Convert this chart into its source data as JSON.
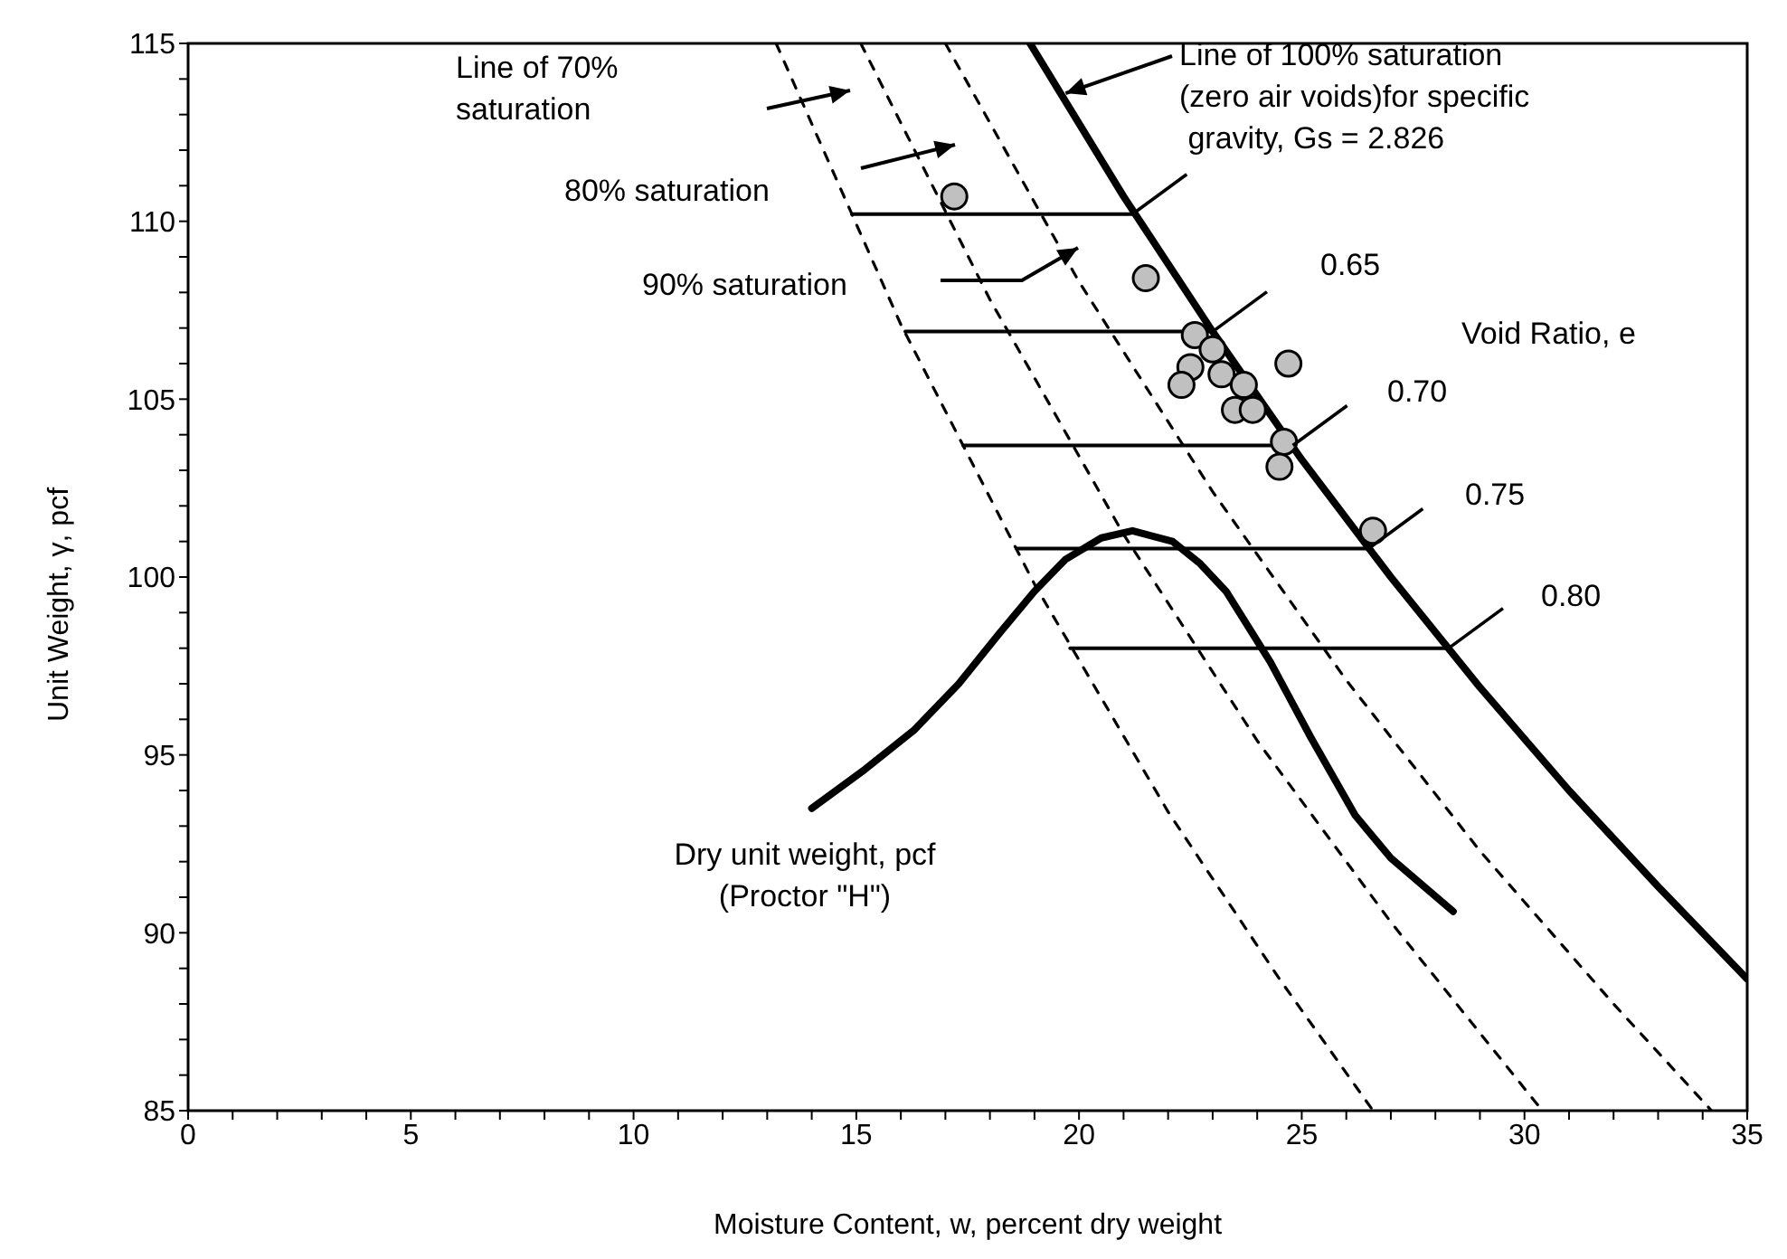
{
  "chart_data": {
    "type": "line",
    "xlabel": "Moisture Content, w, percent dry weight",
    "ylabel": "Unit Weight, γ,  pcf",
    "xlim": [
      0,
      35
    ],
    "ylim": [
      85,
      115
    ],
    "xticks": [
      0,
      {
        "value": 1,
        "label": null
      },
      {
        "value": 2,
        "label": null
      },
      {
        "value": 3,
        "label": null
      },
      {
        "value": 4,
        "label": null
      },
      5,
      {
        "value": 6,
        "label": null
      },
      {
        "value": 7,
        "label": null
      },
      {
        "value": 8,
        "label": null
      },
      {
        "value": 9,
        "label": null
      },
      10,
      {
        "value": 11,
        "label": null
      },
      {
        "value": 12,
        "label": null
      },
      {
        "value": 13,
        "label": null
      },
      {
        "value": 14,
        "label": null
      },
      15,
      {
        "value": 16,
        "label": null
      },
      {
        "value": 17,
        "label": null
      },
      {
        "value": 18,
        "label": null
      },
      {
        "value": 19,
        "label": null
      },
      20,
      {
        "value": 21,
        "label": null
      },
      {
        "value": 22,
        "label": null
      },
      {
        "value": 23,
        "label": null
      },
      {
        "value": 24,
        "label": null
      },
      25,
      {
        "value": 26,
        "label": null
      },
      {
        "value": 27,
        "label": null
      },
      {
        "value": 28,
        "label": null
      },
      {
        "value": 29,
        "label": null
      },
      30,
      {
        "value": 31,
        "label": null
      },
      {
        "value": 32,
        "label": null
      },
      {
        "value": 33,
        "label": null
      },
      {
        "value": 34,
        "label": null
      },
      35
    ],
    "yticks": [
      85,
      {
        "value": 86,
        "label": null
      },
      {
        "value": 87,
        "label": null
      },
      {
        "value": 88,
        "label": null
      },
      {
        "value": 89,
        "label": null
      },
      90,
      {
        "value": 91,
        "label": null
      },
      {
        "value": 92,
        "label": null
      },
      {
        "value": 93,
        "label": null
      },
      {
        "value": 94,
        "label": null
      },
      95,
      {
        "value": 96,
        "label": null
      },
      {
        "value": 97,
        "label": null
      },
      {
        "value": 98,
        "label": null
      },
      {
        "value": 99,
        "label": null
      },
      100,
      {
        "value": 101,
        "label": null
      },
      {
        "value": 102,
        "label": null
      },
      {
        "value": 103,
        "label": null
      },
      {
        "value": 104,
        "label": null
      },
      105,
      {
        "value": 106,
        "label": null
      },
      {
        "value": 107,
        "label": null
      },
      {
        "value": 108,
        "label": null
      },
      {
        "value": 109,
        "label": null
      },
      110,
      {
        "value": 111,
        "label": null
      },
      {
        "value": 112,
        "label": null
      },
      {
        "value": 113,
        "label": null
      },
      {
        "value": 114,
        "label": null
      },
      115
    ],
    "series": [
      {
        "color": "#000000",
        "x": [
          18.9,
          21,
          23,
          25,
          27,
          29,
          31,
          33,
          35
        ],
        "values": [
          115,
          110.7,
          106.9,
          103.3,
          100,
          96.9,
          94,
          91.3,
          88.7
        ]
      },
      {
        "line_style": "dashed",
        "color": "#000000",
        "x": [
          17,
          20,
          23,
          26,
          29,
          32,
          34.2
        ],
        "values": [
          115,
          108.3,
          102.4,
          97.1,
          92.3,
          88,
          85
        ]
      },
      {
        "line_style": "dashed",
        "color": "#000000",
        "x": [
          15.1,
          18,
          21,
          24,
          27,
          30.4
        ],
        "values": [
          115,
          107.8,
          101.2,
          95.4,
          90.3,
          85
        ]
      },
      {
        "line_style": "dashed",
        "color": "#000000",
        "x": [
          13.2,
          16,
          19,
          22,
          24.5,
          26.6
        ],
        "values": [
          115,
          107.1,
          99.8,
          93.4,
          88.7,
          85
        ]
      },
      {
        "color": "#000000",
        "x": [
          14.9,
          21.2
        ],
        "values": [
          110.2,
          110.2
        ]
      },
      {
        "color": "#000000",
        "x": [
          16.1,
          23
        ],
        "values": [
          106.9,
          106.9
        ]
      },
      {
        "color": "#000000",
        "x": [
          17.4,
          24.8
        ],
        "values": [
          103.7,
          103.7
        ]
      },
      {
        "color": "#000000",
        "x": [
          18.6,
          26.5
        ],
        "values": [
          100.8,
          100.8
        ]
      },
      {
        "color": "#000000",
        "x": [
          19.8,
          28.3
        ],
        "values": [
          98,
          98
        ]
      },
      {
        "color": "#000000",
        "x": [
          14,
          15.2,
          16.3,
          17.3,
          18.2,
          19,
          19.7,
          20.5,
          21.2,
          22.1,
          22.7,
          23.3,
          24.3,
          25.2,
          26.2,
          27,
          28.4
        ],
        "values": [
          93.5,
          94.6,
          95.7,
          97,
          98.4,
          99.6,
          100.5,
          101.1,
          101.3,
          101,
          100.4,
          99.6,
          97.6,
          95.5,
          93.3,
          92.1,
          90.6
        ]
      },
      {
        "type": "scatter",
        "marker": "circle",
        "color": "#c0c0c0",
        "x": [
          17.2,
          21.5,
          22.6,
          23,
          22.5,
          23.2,
          22.3,
          23.7,
          23.5,
          23.9,
          24.7,
          24.6,
          24.5,
          26.6
        ],
        "values": [
          110.7,
          108.4,
          106.8,
          106.4,
          105.9,
          105.7,
          105.4,
          105.4,
          104.7,
          104.7,
          106,
          103.8,
          103.1,
          101.3
        ]
      }
    ],
    "annotations": [
      "Line of 70%\nsaturation",
      "80% saturation",
      "90% saturation",
      {
        "text": "Line of 100% saturation\n(zero air voids)for specific\n gravity, Gs = 2.826",
        "x": 19.7,
        "y": 113.6
      },
      "Void Ratio, e",
      "0.65",
      "0.70",
      "0.75",
      "0.80",
      "Dry unit weight, pcf\n(Proctor \"H\")"
    ]
  }
}
